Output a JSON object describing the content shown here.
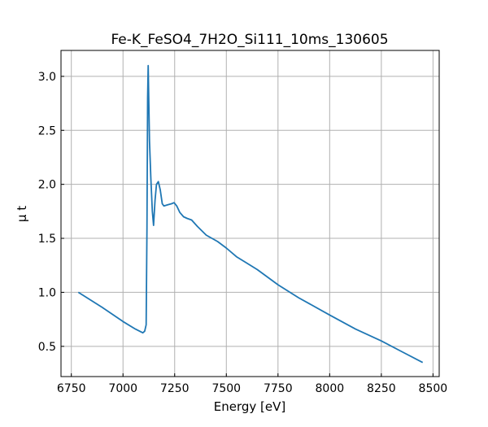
{
  "chart_data": {
    "type": "line",
    "title": "Fe-K_FeSO4_7H2O_Si111_10ms_130605",
    "xlabel": "Energy [eV]",
    "ylabel": "μ t",
    "xlim": [
      6700,
      8530
    ],
    "ylim": [
      0.22,
      3.24
    ],
    "xticks": [
      6750,
      7000,
      7250,
      7500,
      7750,
      8000,
      8250,
      8500
    ],
    "yticks": [
      0.5,
      1.0,
      1.5,
      2.0,
      2.5,
      3.0
    ],
    "ytick_labels": [
      "0.5",
      "1.0",
      "1.5",
      "2.0",
      "2.5",
      "3.0"
    ],
    "grid": true,
    "series": [
      {
        "name": "mu t",
        "color": "#1f77b4",
        "x": [
          6784,
          6900,
          7000,
          7060,
          7096,
          7105,
          7112,
          7116,
          7119,
          7122,
          7128,
          7135,
          7142,
          7148,
          7155,
          7162,
          7171,
          7180,
          7190,
          7198,
          7215,
          7235,
          7247,
          7260,
          7275,
          7293,
          7310,
          7332,
          7360,
          7403,
          7430,
          7458,
          7500,
          7549,
          7600,
          7650,
          7750,
          7850,
          8000,
          8125,
          8250,
          8350,
          8450
        ],
        "y": [
          1.0,
          0.86,
          0.73,
          0.66,
          0.625,
          0.64,
          0.7,
          1.6,
          2.8,
          3.1,
          2.4,
          2.05,
          1.75,
          1.62,
          1.85,
          2.0,
          2.025,
          1.95,
          1.82,
          1.8,
          1.81,
          1.82,
          1.83,
          1.8,
          1.74,
          1.7,
          1.685,
          1.67,
          1.61,
          1.53,
          1.5,
          1.47,
          1.41,
          1.33,
          1.27,
          1.21,
          1.07,
          0.95,
          0.79,
          0.66,
          0.55,
          0.45,
          0.35
        ]
      }
    ]
  }
}
